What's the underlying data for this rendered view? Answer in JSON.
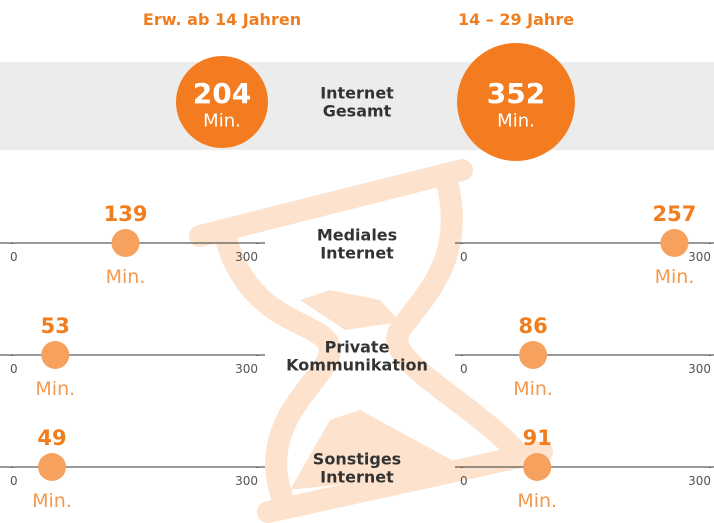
{
  "chart_data": {
    "type": "dotplot",
    "unit": "Min.",
    "groups": [
      "Erw. ab 14 Jahren",
      "14 – 29 Jahre"
    ],
    "total": {
      "label": "Internet Gesamt",
      "values": [
        204,
        352
      ]
    },
    "rows": [
      {
        "label": "Mediales Internet",
        "values": [
          139,
          257
        ]
      },
      {
        "label": "Private Kommunikation",
        "values": [
          53,
          86
        ]
      },
      {
        "label": "Sonstiges Internet",
        "values": [
          49,
          91
        ]
      }
    ],
    "xlim": [
      0,
      300
    ],
    "xticks": [
      0,
      300
    ],
    "color": "#f47c20",
    "dot_color": "#f6a25e"
  }
}
